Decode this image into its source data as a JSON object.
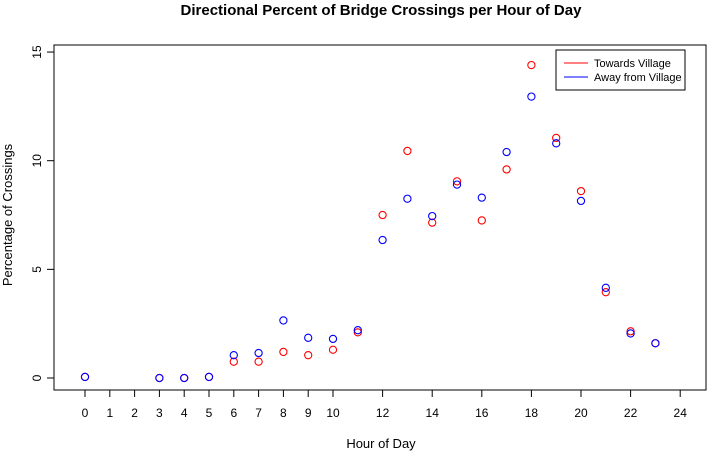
{
  "chart_data": {
    "type": "scatter",
    "title": "Directional Percent of Bridge Crossings per Hour of Day",
    "xlabel": "Hour of Day",
    "ylabel": "Percentage of Crossings",
    "xlim": [
      -1,
      24
    ],
    "ylim": [
      -0.2,
      15.5
    ],
    "xticks": [
      0,
      1,
      2,
      3,
      4,
      5,
      6,
      7,
      8,
      9,
      10,
      12,
      14,
      16,
      18,
      20,
      22,
      24
    ],
    "yticks": [
      0,
      5,
      10,
      15
    ],
    "grid": false,
    "legend_position": "top-right",
    "series": [
      {
        "name": "Towards Village",
        "color": "#ff0000",
        "marker": "open-circle",
        "x": [
          0,
          3,
          4,
          5,
          6,
          7,
          8,
          9,
          10,
          11,
          12,
          13,
          14,
          15,
          16,
          17,
          18,
          19,
          20,
          21,
          22,
          23
        ],
        "y": [
          0.05,
          0.0,
          0.0,
          0.05,
          0.75,
          0.75,
          1.2,
          1.05,
          1.3,
          2.1,
          7.5,
          10.45,
          7.15,
          9.05,
          7.25,
          9.6,
          14.4,
          11.05,
          8.6,
          3.95,
          2.15,
          1.6
        ]
      },
      {
        "name": "Away from Village",
        "color": "#0000ff",
        "marker": "open-circle",
        "x": [
          0,
          3,
          4,
          5,
          6,
          7,
          8,
          9,
          10,
          11,
          12,
          13,
          14,
          15,
          16,
          17,
          18,
          19,
          20,
          21,
          22,
          23
        ],
        "y": [
          0.05,
          0.0,
          0.0,
          0.05,
          1.05,
          1.15,
          2.65,
          1.85,
          1.8,
          2.2,
          6.35,
          8.25,
          7.45,
          8.9,
          8.3,
          10.4,
          12.95,
          10.8,
          8.15,
          4.15,
          2.05,
          1.6
        ]
      }
    ]
  }
}
